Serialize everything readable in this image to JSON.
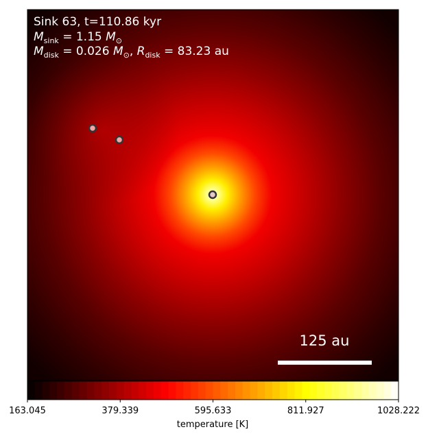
{
  "chart_data": {
    "type": "heatmap",
    "annotation": {
      "sink_label": "Sink 63, t=110.86 kyr",
      "msink_symbol": "M",
      "msink_sub": "sink",
      "msink_value": " = 1.15 ",
      "msink_unit_sym": "M",
      "msink_unit_sub": "⊙",
      "mdisk_symbol": "M",
      "mdisk_sub": "disk",
      "mdisk_value": " = 0.026 ",
      "mdisk_unit_sym": "M",
      "mdisk_unit_sub": "⊙",
      "rdisk_sep": ", ",
      "rdisk_symbol": "R",
      "rdisk_sub": "disk",
      "rdisk_value": " = 83.23 au"
    },
    "scale_bar": {
      "label": "125 au",
      "length_au": 125
    },
    "sinks": [
      {
        "id": "primary",
        "color": "#e7c9c9"
      },
      {
        "id": "secondary-1",
        "color": "#f4a6a6"
      },
      {
        "id": "secondary-2",
        "color": "#f4a6a6"
      }
    ],
    "colorbar": {
      "label": "temperature [K]",
      "colormap": "hot",
      "vmin": 163.045,
      "vmax": 1028.222,
      "ticks": [
        "163.045",
        "379.339",
        "595.633",
        "811.927",
        "1028.222"
      ],
      "discrete_levels": 50
    },
    "colors": {
      "background": "#000000",
      "annotation_text": "#ffffff"
    }
  }
}
